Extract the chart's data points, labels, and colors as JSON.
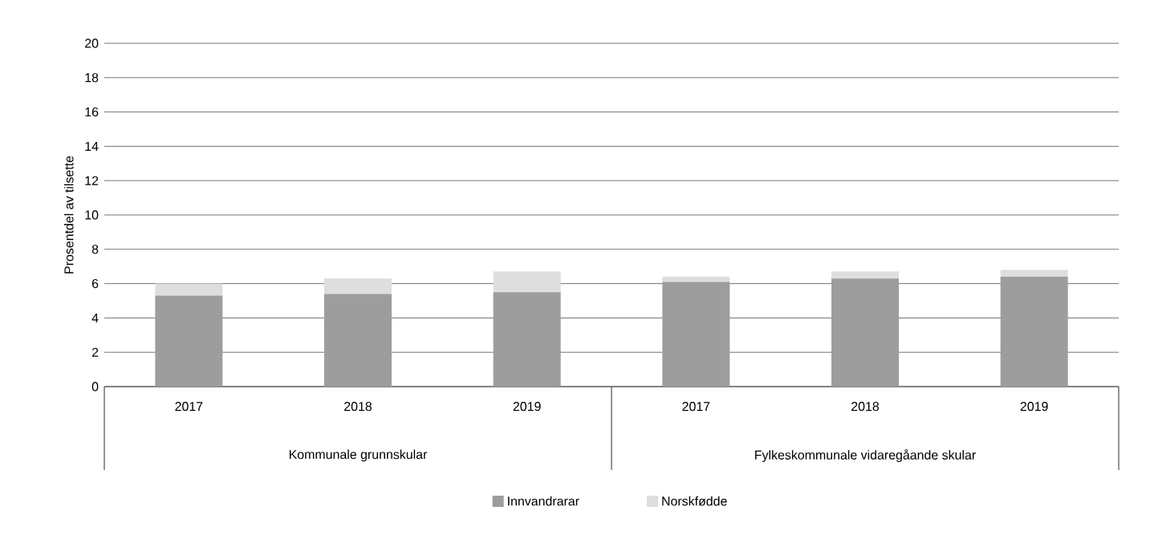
{
  "chart_data": {
    "type": "bar",
    "stacked": true,
    "ylabel": "Prosentdel av tilsette",
    "categories": [
      "2017",
      "2018",
      "2019",
      "2017",
      "2018",
      "2019"
    ],
    "series": [
      {
        "name": "Innvandrarar",
        "color": "#9d9d9d",
        "values": [
          5.3,
          5.4,
          5.5,
          6.1,
          6.3,
          6.4
        ]
      },
      {
        "name": "Norskfødde",
        "color": "#dedede",
        "values": [
          0.7,
          0.9,
          1.2,
          0.3,
          0.4,
          0.4
        ]
      }
    ],
    "annotations": [
      "Kommunale grunnskular",
      "Fylkeskommunale vidaregåande skular"
    ],
    "ylim": [
      0,
      20
    ],
    "yticks": [
      0,
      2,
      4,
      6,
      8,
      10,
      12,
      14,
      16,
      18,
      20
    ],
    "grid": "y",
    "legend": "bottom"
  }
}
